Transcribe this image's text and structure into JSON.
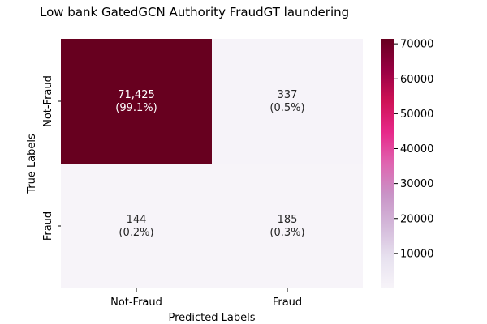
{
  "chart_data": {
    "type": "heatmap",
    "title": "Low bank GatedGCN Authority FraudGT laundering",
    "xlabel": "Predicted Labels",
    "ylabel": "True Labels",
    "x_categories": [
      "Not-Fraud",
      "Fraud"
    ],
    "y_categories": [
      "Not-Fraud",
      "Fraud"
    ],
    "values": [
      [
        71425,
        337
      ],
      [
        144,
        185
      ]
    ],
    "cell_labels": [
      [
        [
          "71,425",
          "(99.1%)"
        ],
        [
          "337",
          "(0.5%)"
        ]
      ],
      [
        [
          "144",
          "(0.2%)"
        ],
        [
          "185",
          "(0.3%)"
        ]
      ]
    ],
    "colorbar": {
      "min": 0,
      "max": 71425,
      "ticks": [
        10000,
        20000,
        30000,
        40000,
        50000,
        60000,
        70000
      ],
      "colormap": [
        "#f7f4f9",
        "#e7e1ef",
        "#d4b9da",
        "#c994c7",
        "#df65b0",
        "#e7298a",
        "#ce1256",
        "#980043",
        "#67001f"
      ]
    },
    "grid": false
  }
}
